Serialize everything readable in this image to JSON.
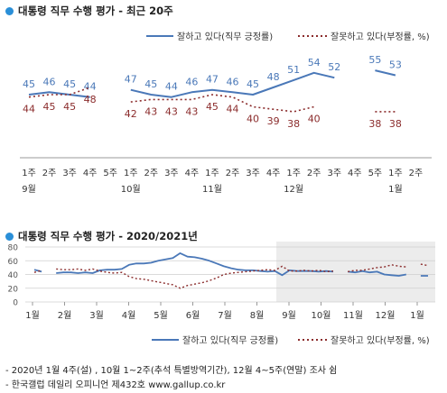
{
  "colors": {
    "approve": "#4a78b8",
    "disapprove": "#8b2c2c",
    "title_dot": "#2a8fd8",
    "shade": "#ececec"
  },
  "chart_data": [
    {
      "type": "line",
      "title": "대통령 직무 수행 평가 - 최근 20주",
      "x_week_labels": [
        "1주",
        "2주",
        "3주",
        "4주",
        "5주",
        "1주",
        "2주",
        "3주",
        "4주",
        "1주",
        "2주",
        "3주",
        "4주",
        "1주",
        "2주",
        "3주",
        "4주",
        "5주",
        "1주",
        "2주"
      ],
      "x_month_labels": [
        {
          "week_index": 0,
          "label": "9월"
        },
        {
          "week_index": 5,
          "label": "10월"
        },
        {
          "week_index": 9,
          "label": "11월"
        },
        {
          "week_index": 13,
          "label": "12월"
        },
        {
          "week_index": 18,
          "label": "1월"
        }
      ],
      "series": [
        {
          "name": "잘하고 있다(직무 긍정률)",
          "style": "solid",
          "color": "#4a78b8",
          "values": [
            45,
            46,
            45,
            44,
            null,
            47,
            45,
            44,
            46,
            47,
            46,
            45,
            48,
            51,
            54,
            52,
            null,
            55,
            53,
            null
          ]
        },
        {
          "name": "잘못하고 있다(부정률, %)",
          "style": "dotted",
          "color": "#8b2c2c",
          "values": [
            44,
            45,
            45,
            48,
            null,
            42,
            43,
            43,
            43,
            45,
            44,
            40,
            39,
            38,
            40,
            null,
            null,
            38,
            38,
            null
          ]
        }
      ],
      "legend_position": "top-right"
    },
    {
      "type": "line",
      "title": "대통령 직무 수행 평가 - 2020/2021년",
      "ylim": [
        0,
        80
      ],
      "y_ticks": [
        "0",
        "20",
        "40",
        "60",
        "80"
      ],
      "x_month_labels": [
        "1월",
        "2월",
        "3월",
        "4월",
        "5월",
        "6월",
        "7월",
        "8월",
        "9월",
        "10월",
        "11월",
        "12월",
        "1월"
      ],
      "shaded_region_months": [
        "9월",
        "1월"
      ],
      "series": [
        {
          "name": "잘하고 있다(직무 긍정률)",
          "style": "solid",
          "color": "#4a78b8",
          "values": [
            47,
            44,
            null,
            42,
            43,
            43,
            42,
            43,
            42,
            46,
            47,
            47,
            48,
            54,
            56,
            56,
            57,
            60,
            62,
            64,
            71,
            66,
            65,
            63,
            60,
            56,
            52,
            49,
            47,
            46,
            46,
            45,
            44,
            45,
            39,
            46,
            45,
            45,
            45,
            44,
            45,
            44,
            null,
            44,
            43,
            45,
            43,
            44,
            40,
            39,
            38,
            40,
            null,
            38,
            38
          ]
        },
        {
          "name": "잘못하고 있다(부정률, %)",
          "style": "dotted",
          "color": "#8b2c2c",
          "values": [
            43,
            46,
            null,
            48,
            47,
            47,
            48,
            46,
            48,
            45,
            43,
            42,
            43,
            37,
            34,
            33,
            31,
            29,
            27,
            25,
            20,
            24,
            26,
            28,
            31,
            35,
            40,
            42,
            43,
            44,
            45,
            46,
            47,
            46,
            52,
            45,
            45,
            46,
            45,
            46,
            44,
            45,
            null,
            44,
            46,
            46,
            48,
            50,
            51,
            54,
            52,
            51,
            null,
            55,
            53
          ]
        }
      ],
      "legend_position": "bottom-right"
    }
  ],
  "footnotes": [
    "- 2020년 1월 4주(설) , 10월 1~2주(추석 특별방역기간), 12월 4~5주(연말) 조사 쉼",
    "- 한국갤럽 데일리 오피니언 제432호 www.gallup.co.kr"
  ]
}
